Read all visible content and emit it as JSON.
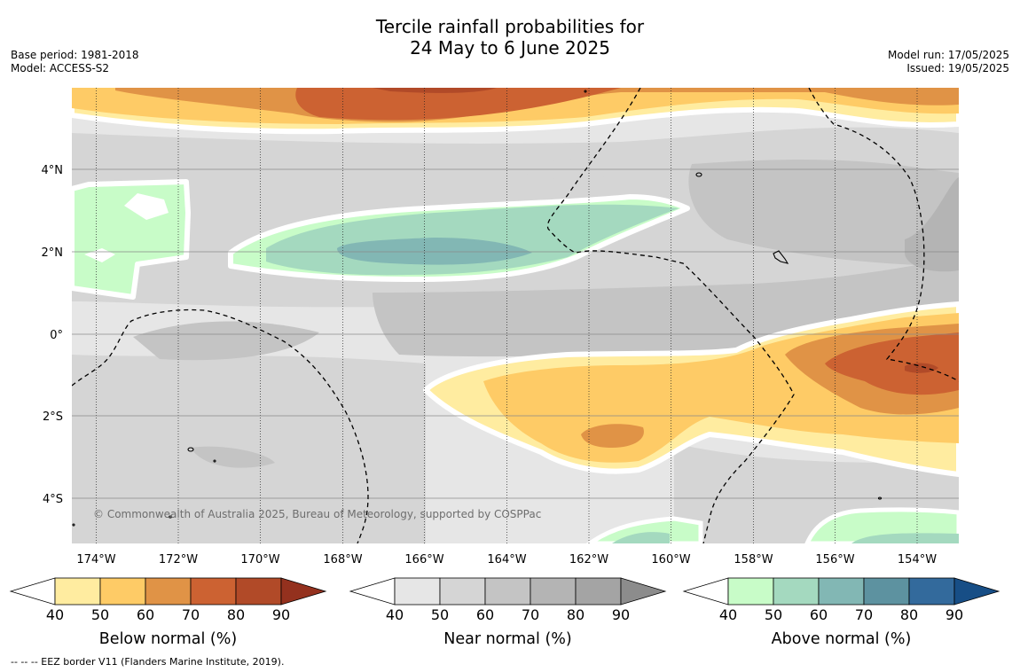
{
  "title": {
    "line1": "Tercile rainfall probabilities for",
    "line2": "24 May to 6 June 2025"
  },
  "meta_left": {
    "base_period": "Base period: 1981-2018",
    "model": "Model: ACCESS-S2"
  },
  "meta_right": {
    "model_run": "Model run: 17/05/2025",
    "issued": "Issued: 19/05/2025"
  },
  "map": {
    "copyright": "© Commonwealth of Australia 2025, Bureau of Meteorology, supported by COSPPac",
    "lon_ticks": [
      "174°W",
      "172°W",
      "170°W",
      "168°W",
      "166°W",
      "164°W",
      "162°W",
      "160°W",
      "158°W",
      "156°W",
      "154°W"
    ],
    "lat_ticks": [
      "4°N",
      "2°N",
      "0°",
      "2°S",
      "4°S"
    ]
  },
  "colorbars": [
    {
      "title": "Below normal (%)",
      "ticks": [
        "40",
        "50",
        "60",
        "70",
        "80",
        "90"
      ],
      "colors": [
        "#ffffff",
        "#ffeca0",
        "#fecb66",
        "#e09346",
        "#cc6232",
        "#b14a28",
        "#94311e"
      ]
    },
    {
      "title": "Near normal (%)",
      "ticks": [
        "40",
        "50",
        "60",
        "70",
        "80",
        "90"
      ],
      "colors": [
        "#ffffff",
        "#e6e6e6",
        "#d5d5d5",
        "#c4c4c4",
        "#b4b4b4",
        "#a4a4a4",
        "#8c8c8c"
      ]
    },
    {
      "title": "Above normal (%)",
      "ticks": [
        "40",
        "50",
        "60",
        "70",
        "80",
        "90"
      ],
      "colors": [
        "#ffffff",
        "#c8fcc8",
        "#a4d9bf",
        "#82b7b4",
        "#5d92a0",
        "#336a9c",
        "#174e86"
      ]
    }
  ],
  "footer": "--  --  -- EEZ border V11 (Flanders Marine Institute, 2019)."
}
